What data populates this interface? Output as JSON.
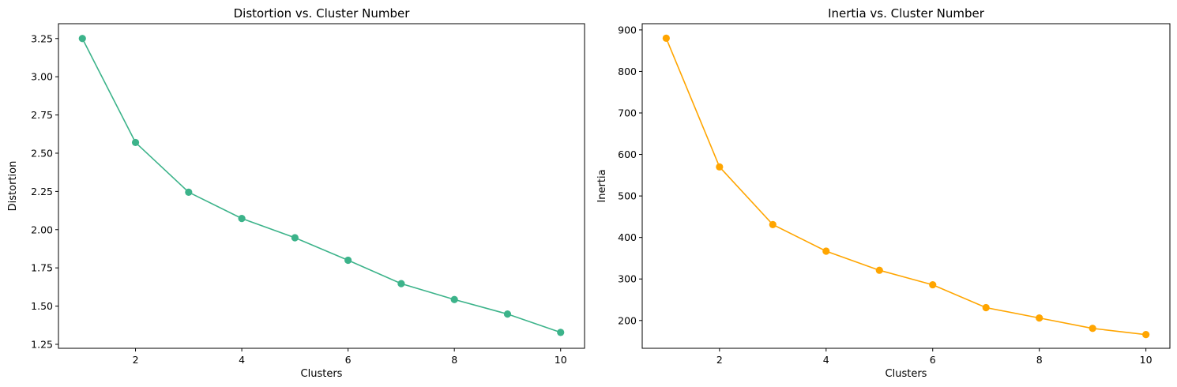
{
  "chart_data": [
    {
      "type": "line",
      "title": "Distortion vs. Cluster Number",
      "xlabel": "Clusters",
      "ylabel": "Distortion",
      "x": [
        1,
        2,
        3,
        4,
        5,
        6,
        7,
        8,
        9,
        10
      ],
      "series": [
        {
          "values": [
            3.25,
            2.57,
            2.245,
            2.073,
            1.947,
            1.8,
            1.647,
            1.543,
            1.448,
            1.328
          ],
          "color": "#3cb38a",
          "marker": "circle"
        }
      ],
      "xlim": [
        0.55,
        10.45
      ],
      "ylim": [
        1.224,
        3.347
      ],
      "xticks": [
        2,
        4,
        6,
        8,
        10
      ],
      "xtick_labels": [
        "2",
        "4",
        "6",
        "8",
        "10"
      ],
      "yticks": [
        1.25,
        1.5,
        1.75,
        2.0,
        2.25,
        2.5,
        2.75,
        3.0,
        3.25
      ],
      "ytick_labels": [
        "1.25",
        "1.50",
        "1.75",
        "2.00",
        "2.25",
        "2.50",
        "2.75",
        "3.00",
        "3.25"
      ],
      "grid": false
    },
    {
      "type": "line",
      "title": "Inertia vs. Cluster Number",
      "xlabel": "Clusters",
      "ylabel": "Inertia",
      "x": [
        1,
        2,
        3,
        4,
        5,
        6,
        7,
        8,
        9,
        10
      ],
      "series": [
        {
          "values": [
            880,
            570,
            431,
            367,
            321,
            286,
            231,
            206,
            181,
            166
          ],
          "color": "#ffa500",
          "marker": "circle"
        }
      ],
      "xlim": [
        0.55,
        10.45
      ],
      "ylim": [
        133,
        915
      ],
      "xticks": [
        2,
        4,
        6,
        8,
        10
      ],
      "xtick_labels": [
        "2",
        "4",
        "6",
        "8",
        "10"
      ],
      "yticks": [
        200,
        300,
        400,
        500,
        600,
        700,
        800,
        900
      ],
      "ytick_labels": [
        "200",
        "300",
        "400",
        "500",
        "600",
        "700",
        "800",
        "900"
      ],
      "grid": false
    }
  ]
}
